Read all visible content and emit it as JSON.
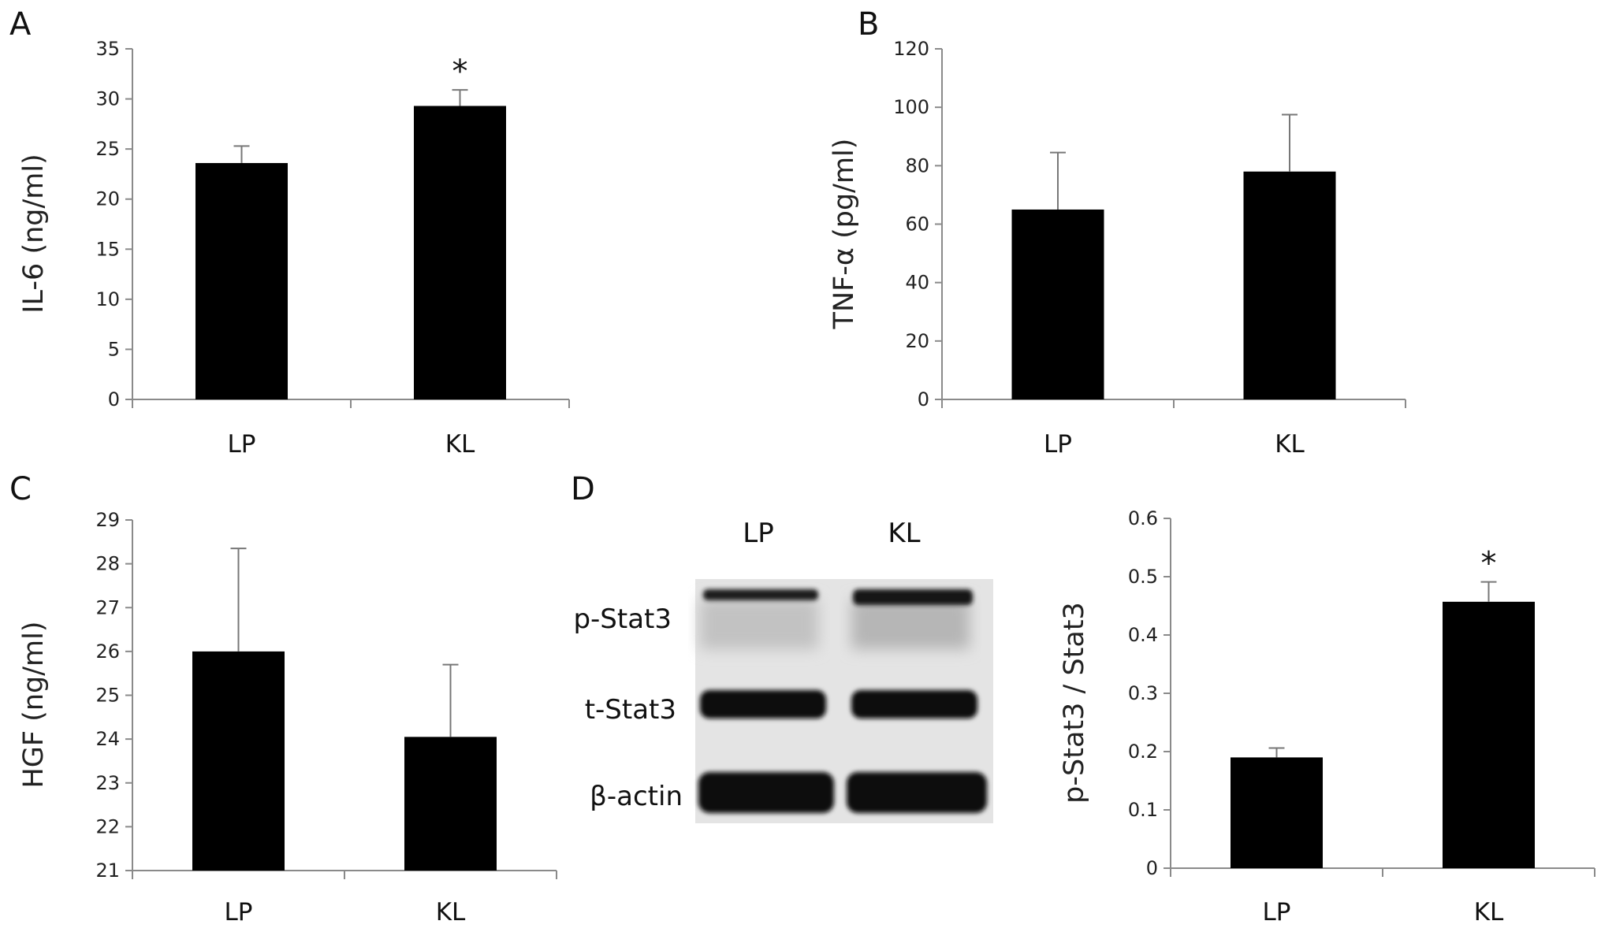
{
  "panels": [
    "A",
    "B",
    "C",
    "D"
  ],
  "chart_data": [
    {
      "panel": "A",
      "type": "bar",
      "categories": [
        "LP",
        "KL"
      ],
      "values": [
        23.6,
        29.3
      ],
      "errors": [
        1.7,
        1.6
      ],
      "significance": [
        "",
        "*"
      ],
      "ylabel": "IL-6 (ng/ml)",
      "ylim": [
        0,
        35
      ],
      "yticks": [
        0,
        5,
        10,
        15,
        20,
        25,
        30,
        35
      ],
      "grid": false
    },
    {
      "panel": "B",
      "type": "bar",
      "categories": [
        "LP",
        "KL"
      ],
      "values": [
        65,
        78
      ],
      "errors": [
        19.5,
        19.5
      ],
      "significance": [
        "",
        ""
      ],
      "ylabel": "TNF-α (pg/ml)",
      "ylim": [
        0,
        120
      ],
      "yticks": [
        0,
        20,
        40,
        60,
        80,
        100,
        120
      ],
      "grid": false
    },
    {
      "panel": "C",
      "type": "bar",
      "categories": [
        "LP",
        "KL"
      ],
      "values": [
        26.0,
        24.05
      ],
      "errors": [
        2.35,
        1.65
      ],
      "significance": [
        "",
        ""
      ],
      "ylabel": "HGF (ng/ml)",
      "ylim": [
        21,
        29
      ],
      "yticks": [
        21,
        22,
        23,
        24,
        25,
        26,
        27,
        28,
        29
      ],
      "grid": false
    },
    {
      "panel": "D",
      "type": "bar",
      "categories": [
        "LP",
        "KL"
      ],
      "values": [
        0.19,
        0.457
      ],
      "errors": [
        0.016,
        0.034
      ],
      "significance": [
        "",
        "*"
      ],
      "ylabel": "p-Stat3 / Stat3",
      "ylim": [
        0,
        0.6
      ],
      "yticks": [
        0,
        0.1,
        0.2,
        0.3,
        0.4,
        0.5,
        0.6
      ],
      "grid": false
    }
  ],
  "western_blot": {
    "columns": [
      "LP",
      "KL"
    ],
    "rows": [
      "p-Stat3",
      "t-Stat3",
      "β-actin"
    ]
  }
}
